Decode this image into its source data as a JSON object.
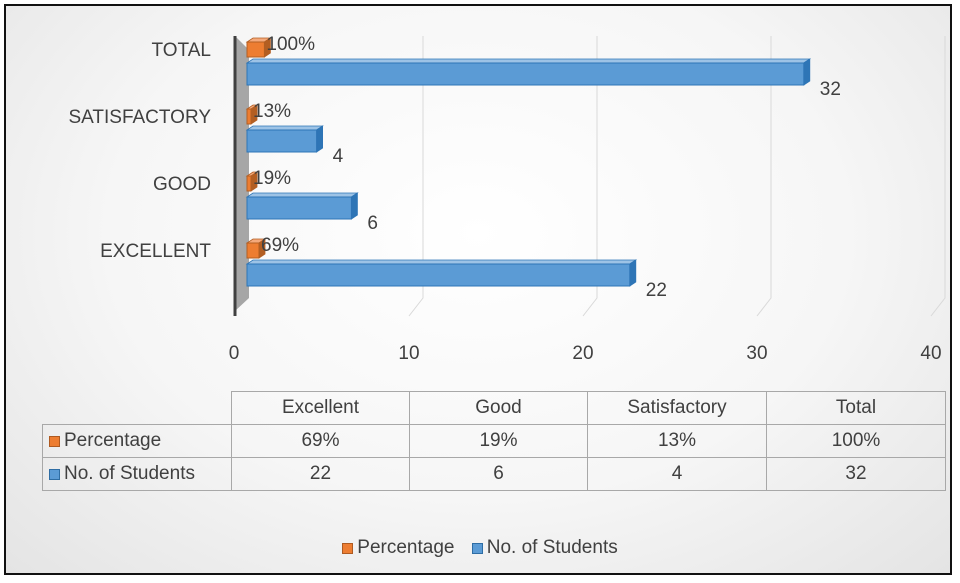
{
  "chart_data": {
    "type": "bar",
    "orientation": "horizontal",
    "categories": [
      "EXCELLENT",
      "GOOD",
      "SATISFACTORY",
      "TOTAL"
    ],
    "series": [
      {
        "name": "Percentage",
        "values": [
          0.69,
          0.19,
          0.13,
          1.0
        ],
        "labels": [
          "69%",
          "19%",
          "13%",
          "100%"
        ],
        "color": "#ed7d31"
      },
      {
        "name": "No. of Students",
        "values": [
          22,
          6,
          4,
          32
        ],
        "labels": [
          "22",
          "6",
          "4",
          "32"
        ],
        "color": "#5b9bd5"
      }
    ],
    "xlim": [
      0,
      40
    ],
    "xticks": [
      "0",
      "10",
      "20",
      "30",
      "40"
    ],
    "grid": true,
    "legend_position": "bottom",
    "style": "3d"
  },
  "data_table": {
    "headers": [
      "Excellent",
      "Good",
      "Satisfactory",
      "Total"
    ],
    "rows": [
      {
        "name": "Percentage",
        "values": [
          "69%",
          "19%",
          "13%",
          "100%"
        ]
      },
      {
        "name": "No. of Students",
        "values": [
          "22",
          "6",
          "4",
          "32"
        ]
      }
    ]
  },
  "legend": [
    "Percentage",
    "No. of Students"
  ]
}
